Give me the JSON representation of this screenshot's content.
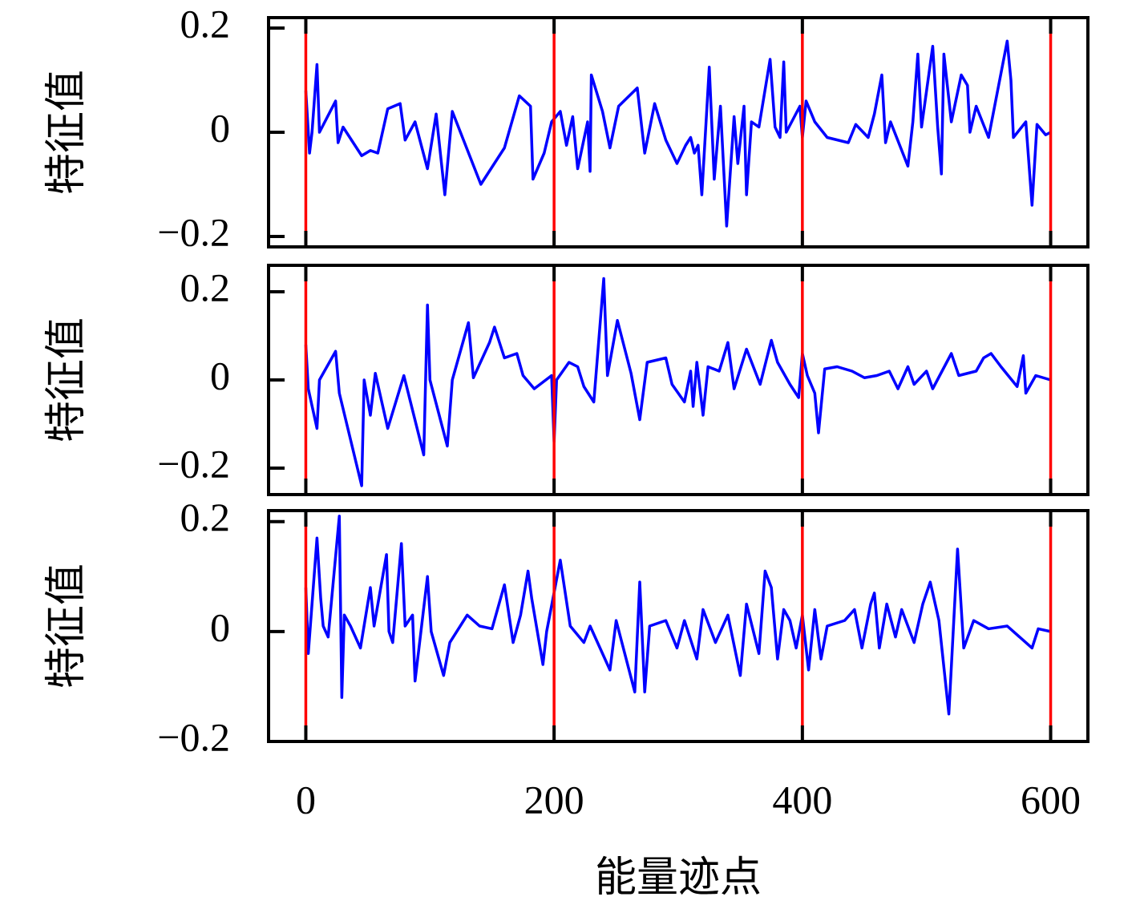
{
  "chart_data": [
    {
      "type": "line",
      "ylabel": "特征值",
      "xlim": [
        -30,
        630
      ],
      "xticks": [
        0,
        200,
        400,
        600
      ],
      "ylim": [
        -0.22,
        0.22
      ],
      "yticks": [
        {
          "value": -0.2,
          "label": "−0.2"
        },
        0,
        0.2
      ],
      "vlines": [
        0,
        200,
        400,
        600
      ],
      "vline_color": "#ff0000",
      "series": [
        {
          "color": "#0000ff",
          "x": [
            0,
            3,
            5,
            9,
            11,
            24,
            26,
            30,
            45,
            52,
            58,
            66,
            76,
            80,
            88,
            98,
            105,
            112,
            118,
            141,
            160,
            172,
            181,
            183,
            192,
            198,
            205,
            210,
            215,
            219,
            227,
            229,
            230,
            239,
            245,
            252,
            267,
            273,
            281,
            290,
            299,
            306,
            310,
            313,
            316,
            319,
            325,
            329,
            334,
            339,
            345,
            348,
            353,
            355,
            359,
            365,
            374,
            378,
            382,
            385,
            387,
            398,
            400,
            403,
            410,
            420,
            437,
            443,
            453,
            458,
            464,
            467,
            471,
            485,
            489,
            493,
            496,
            505,
            509,
            512,
            514,
            520,
            528,
            533,
            535,
            540,
            550,
            565,
            568,
            570,
            580,
            585,
            589,
            596,
            600
          ],
          "values": [
            0.08,
            -0.04,
            0,
            0.13,
            0,
            0.06,
            -0.02,
            0.01,
            -0.045,
            -0.035,
            -0.04,
            0.045,
            0.055,
            -0.015,
            0.02,
            -0.07,
            0.035,
            -0.12,
            0.04,
            -0.1,
            -0.03,
            0.07,
            0.05,
            -0.09,
            -0.04,
            0.02,
            0.04,
            -0.025,
            0.03,
            -0.07,
            0.02,
            -0.075,
            0.11,
            0.04,
            -0.03,
            0.05,
            0.085,
            -0.04,
            0.055,
            -0.015,
            -0.06,
            -0.025,
            -0.01,
            -0.04,
            -0.025,
            -0.12,
            0.125,
            -0.09,
            0.05,
            -0.18,
            0.03,
            -0.06,
            0.05,
            -0.12,
            0.02,
            0.01,
            0.14,
            0.01,
            -0.01,
            0.135,
            0,
            0.05,
            -0.01,
            0.06,
            0.02,
            -0.01,
            -0.02,
            0.015,
            -0.01,
            0.035,
            0.11,
            -0.02,
            0.02,
            -0.065,
            0.02,
            0.15,
            0.01,
            0.165,
            0.01,
            -0.08,
            0.15,
            0.02,
            0.11,
            0.09,
            0,
            0.05,
            -0.01,
            0.175,
            0.1,
            -0.01,
            0.02,
            -0.14,
            0.015,
            -0.005,
            0
          ]
        }
      ]
    },
    {
      "type": "line",
      "ylabel": "特征值",
      "xlim": [
        -30,
        630
      ],
      "xticks": [
        0,
        200,
        400,
        600
      ],
      "ylim": [
        -0.26,
        0.26
      ],
      "yticks": [
        {
          "value": -0.2,
          "label": "−0.2"
        },
        0,
        0.2
      ],
      "vlines": [
        0,
        200,
        400,
        600
      ],
      "vline_color": "#ff0000",
      "series": [
        {
          "color": "#0000ff",
          "x": [
            0,
            2,
            9,
            11,
            24,
            27,
            45,
            47,
            52,
            56,
            66,
            79,
            95,
            98,
            100,
            114,
            118,
            131,
            135,
            148,
            152,
            160,
            170,
            175,
            184,
            198,
            200,
            202,
            212,
            219,
            224,
            232,
            240,
            243,
            251,
            262,
            269,
            275,
            290,
            295,
            305,
            310,
            312,
            315,
            320,
            324,
            333,
            340,
            345,
            355,
            366,
            375,
            380,
            390,
            397,
            400,
            404,
            410,
            413,
            418,
            428,
            440,
            450,
            460,
            470,
            477,
            485,
            490,
            500,
            505,
            520,
            526,
            540,
            546,
            552,
            560,
            573,
            578,
            580,
            588,
            600
          ],
          "values": [
            0.08,
            -0.02,
            -0.11,
            0,
            0.065,
            -0.03,
            -0.24,
            0,
            -0.08,
            0.015,
            -0.11,
            0.01,
            -0.17,
            0.17,
            0,
            -0.15,
            0,
            0.13,
            0.005,
            0.085,
            0.12,
            0.05,
            0.06,
            0.01,
            -0.02,
            0.01,
            -0.14,
            0,
            0.04,
            0.03,
            -0.015,
            -0.05,
            0.23,
            0.01,
            0.135,
            0.015,
            -0.09,
            0.04,
            0.05,
            -0.01,
            -0.05,
            0.02,
            -0.06,
            0.04,
            -0.08,
            0.03,
            0.02,
            0.085,
            -0.02,
            0.07,
            -0.01,
            0.09,
            0.04,
            -0.01,
            -0.04,
            0.06,
            0.01,
            -0.03,
            -0.12,
            0.025,
            0.03,
            0.02,
            0.005,
            0.01,
            0.02,
            -0.02,
            0.03,
            -0.01,
            0.02,
            -0.02,
            0.06,
            0.01,
            0.02,
            0.05,
            0.06,
            0.03,
            -0.015,
            0.055,
            -0.03,
            0.01,
            0
          ]
        }
      ]
    },
    {
      "type": "line",
      "ylabel": "特征值",
      "xlabel": "能量迹点",
      "xlim": [
        -30,
        630
      ],
      "xticks": [
        0,
        200,
        400,
        600
      ],
      "ylim": [
        -0.2,
        0.22
      ],
      "yticks": [
        {
          "value": -0.2,
          "label": "−0.2"
        },
        0,
        0.2
      ],
      "vlines": [
        0,
        200,
        400,
        600
      ],
      "vline_color": "#ff0000",
      "series": [
        {
          "color": "#0000ff",
          "x": [
            0,
            2,
            9,
            12,
            14,
            18,
            27,
            29,
            31,
            36,
            44,
            52,
            55,
            65,
            67,
            70,
            77,
            80,
            86,
            88,
            98,
            101,
            111,
            116,
            130,
            140,
            150,
            160,
            167,
            173,
            179,
            182,
            191,
            194,
            205,
            213,
            224,
            229,
            245,
            250,
            265,
            269,
            273,
            277,
            290,
            299,
            305,
            315,
            320,
            330,
            340,
            350,
            355,
            365,
            370,
            375,
            380,
            385,
            390,
            395,
            400,
            405,
            410,
            415,
            420,
            434,
            442,
            448,
            455,
            458,
            462,
            468,
            475,
            480,
            490,
            497,
            503,
            510,
            518,
            525,
            530,
            538,
            550,
            565,
            585,
            590,
            600
          ],
          "values": [
            0.08,
            -0.04,
            0.17,
            0.06,
            0.01,
            -0.01,
            0.21,
            -0.12,
            0.03,
            0.01,
            -0.03,
            0.08,
            0.01,
            0.14,
            0,
            -0.02,
            0.16,
            0.01,
            0.03,
            -0.09,
            0.1,
            0,
            -0.08,
            -0.02,
            0.03,
            0.01,
            0.005,
            0.085,
            -0.02,
            0.03,
            0.11,
            0.06,
            -0.06,
            0,
            0.13,
            0.01,
            -0.02,
            0.01,
            -0.07,
            0.02,
            -0.11,
            0.09,
            -0.11,
            0.01,
            0.02,
            -0.03,
            0.02,
            -0.05,
            0.04,
            -0.02,
            0.03,
            -0.08,
            0.05,
            -0.04,
            0.11,
            0.08,
            -0.05,
            0.04,
            0.02,
            -0.03,
            0.03,
            -0.07,
            0.04,
            -0.05,
            0.01,
            0.02,
            0.04,
            -0.03,
            0.05,
            0.07,
            -0.03,
            0.05,
            -0.01,
            0.04,
            -0.02,
            0.05,
            0.09,
            0.02,
            -0.15,
            0.15,
            -0.03,
            0.02,
            0.005,
            0.01,
            -0.03,
            0.005,
            0
          ]
        }
      ]
    }
  ]
}
